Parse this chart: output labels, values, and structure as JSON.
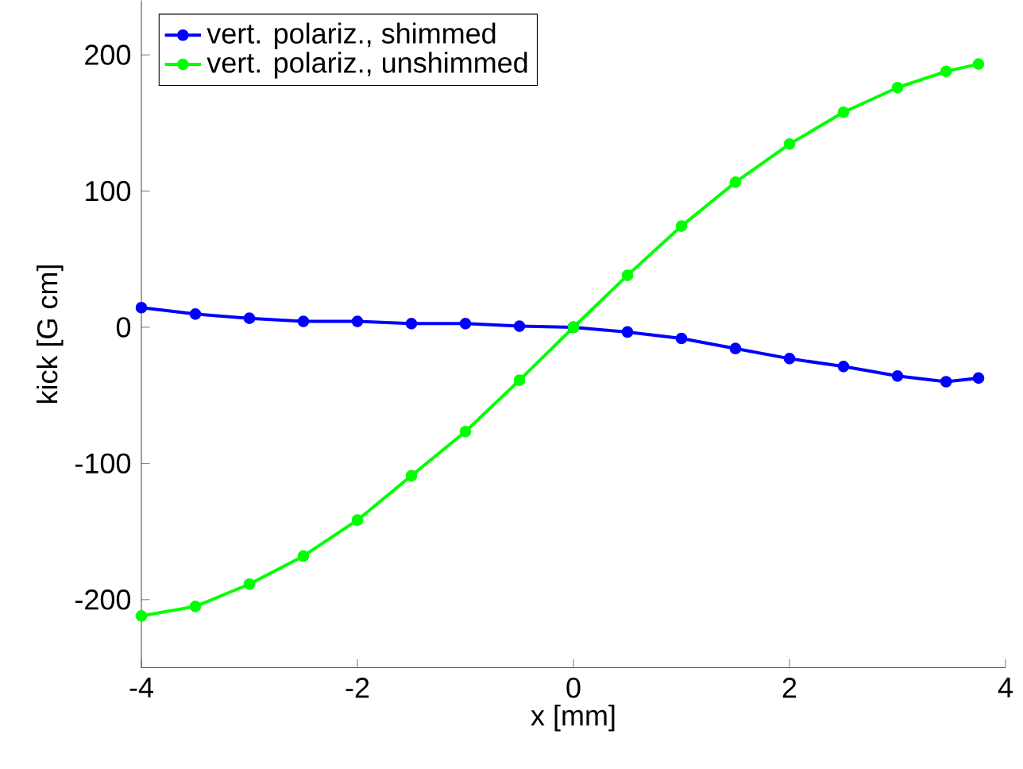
{
  "chart_data": {
    "type": "line",
    "xlabel": "x [mm]",
    "ylabel": "kick [G cm]",
    "x": [
      -4,
      -3.5,
      -3,
      -2.5,
      -2,
      -1.5,
      -1,
      -0.5,
      0,
      0.5,
      1,
      1.5,
      2,
      2.5,
      3,
      3.45,
      3.75
    ],
    "series": [
      {
        "name": "vert. polariz., shimmed",
        "color": "#0000ff",
        "values": [
          14.4,
          9.7,
          6.6,
          4.3,
          4.3,
          2.7,
          2.7,
          0.8,
          0,
          -3.5,
          -8.2,
          -15.6,
          -23,
          -28.8,
          -35.8,
          -40,
          -37.3
        ]
      },
      {
        "name": "vert. polariz., unshimmed",
        "color": "#00ff00",
        "values": [
          -212,
          -205,
          -188.6,
          -168,
          -141.6,
          -109,
          -76.6,
          -38.9,
          0,
          38.1,
          74.3,
          106.5,
          134.5,
          157.9,
          176,
          187.9,
          193.3
        ]
      }
    ],
    "xlim": [
      -4,
      4
    ],
    "ylim": [
      -250,
      240
    ],
    "xticks": [
      -4,
      -2,
      0,
      2,
      4
    ],
    "yticks": [
      -200,
      -100,
      0,
      100,
      200
    ],
    "legend": "top left",
    "marker": "circle",
    "line_style": "solid"
  }
}
